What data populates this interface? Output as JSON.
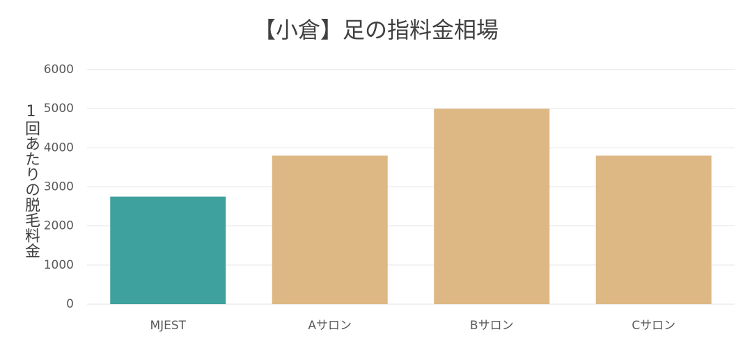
{
  "chart_data": {
    "type": "bar",
    "title": "【小倉】足の指料金相場",
    "y_label": "1回あたりの脱毛料金",
    "categories": [
      "MJEST",
      "Aサロン",
      "Bサロン",
      "Cサロン"
    ],
    "values": [
      2750,
      3800,
      5000,
      3800
    ],
    "colors": [
      "#3fa19d",
      "#ddb884",
      "#ddb884",
      "#ddb884"
    ],
    "ylim": [
      0,
      6000
    ],
    "yticks": [
      0,
      1000,
      2000,
      3000,
      4000,
      5000,
      6000
    ],
    "grid": true
  }
}
